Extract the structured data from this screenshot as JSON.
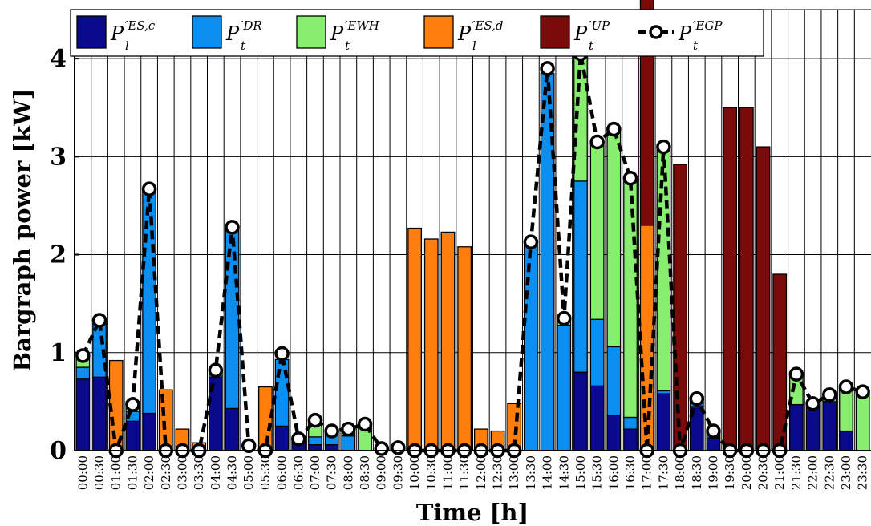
{
  "chart_data": {
    "type": "bar",
    "subtype": "stacked-bar-with-line",
    "ylabel": "Bargraph power [kW]",
    "xlabel": "Time [h]",
    "ylim": [
      0,
      4.5
    ],
    "yticks": [
      "0",
      "1",
      "2",
      "3",
      "4"
    ],
    "grid": true,
    "legend_position": "top",
    "categories": [
      "00:00",
      "00:30",
      "01:00",
      "01:30",
      "02:00",
      "02:30",
      "03:00",
      "03:30",
      "04:00",
      "04:30",
      "05:00",
      "05:30",
      "06:00",
      "06:30",
      "07:00",
      "07:30",
      "08:00",
      "08:30",
      "09:00",
      "09:30",
      "10:00",
      "10:30",
      "11:00",
      "11:30",
      "12:00",
      "12:30",
      "13:00",
      "13:30",
      "14:00",
      "14:30",
      "15:00",
      "15:30",
      "16:00",
      "16:30",
      "17:00",
      "17:30",
      "18:00",
      "18:30",
      "19:00",
      "19:30",
      "20:00",
      "20:30",
      "21:00",
      "21:30",
      "22:00",
      "22:30",
      "23:00",
      "23:30"
    ],
    "series": [
      {
        "key": "es_c",
        "legend_base": "P",
        "legend_sup": "′ES,c",
        "legend_sub": "l",
        "color": "#0a0a8c",
        "values": [
          0.73,
          0.75,
          0,
          0.3,
          0.38,
          0,
          0,
          0,
          0.75,
          0.43,
          0,
          0,
          0.25,
          0.08,
          0.06,
          0.06,
          0,
          0,
          0,
          0,
          0,
          0,
          0,
          0,
          0,
          0,
          0,
          0,
          0,
          0,
          0.8,
          0.66,
          0.36,
          0.22,
          0,
          0.58,
          0,
          0.45,
          0.13,
          0,
          0,
          0,
          0,
          0.47,
          0.45,
          0.5,
          0.2,
          0
        ]
      },
      {
        "key": "dr",
        "legend_base": "P",
        "legend_sup": "′DR",
        "legend_sub": "t",
        "color": "#0a8ef0",
        "values": [
          0.12,
          0.55,
          0,
          0.1,
          2.27,
          0,
          0,
          0,
          0.05,
          1.82,
          0,
          0,
          0.68,
          0.04,
          0.08,
          0.12,
          0.15,
          0,
          0,
          0,
          0,
          0,
          0,
          0,
          0,
          0,
          0,
          2.1,
          3.85,
          1.28,
          1.95,
          0.68,
          0.7,
          0.12,
          0,
          0.03,
          0,
          0.1,
          0.08,
          0,
          0,
          0,
          0,
          0,
          0,
          0,
          0,
          0
        ]
      },
      {
        "key": "ewh",
        "legend_base": "P",
        "legend_sup": "′EWH",
        "legend_sub": "t",
        "color": "#88ee70",
        "values": [
          0.12,
          0,
          0,
          0.1,
          0,
          0,
          0,
          0,
          0,
          0,
          0,
          0,
          0,
          0,
          0.16,
          0,
          0.06,
          0.26,
          0,
          0,
          0,
          0,
          0,
          0,
          0,
          0,
          0,
          0,
          0,
          0.05,
          1.3,
          1.81,
          2.22,
          2.44,
          0,
          2.5,
          0,
          0,
          0,
          0,
          0,
          0,
          0,
          0.3,
          0,
          0.08,
          0.45,
          0.58
        ]
      },
      {
        "key": "es_d",
        "legend_base": "P",
        "legend_sup": "′ES,d",
        "legend_sub": "l",
        "color": "#ff7f0e",
        "values": [
          0,
          0,
          0.92,
          0,
          0,
          0.62,
          0.22,
          0.08,
          0,
          0,
          0,
          0.65,
          0,
          0,
          0,
          0,
          0,
          0,
          0,
          0,
          2.27,
          2.16,
          2.23,
          2.08,
          0.22,
          0.2,
          0.48,
          0,
          0,
          0,
          0,
          0,
          0,
          0,
          2.3,
          0,
          0,
          0,
          0,
          0,
          0,
          0,
          0,
          0,
          0,
          0,
          0,
          0
        ]
      },
      {
        "key": "up",
        "legend_base": "P",
        "legend_sup": "′UP",
        "legend_sub": "t",
        "color": "#7a0b0b",
        "values": [
          0,
          0,
          0,
          0,
          0,
          0,
          0,
          0,
          0,
          0,
          0,
          0,
          0,
          0,
          0,
          0,
          0,
          0,
          0,
          0,
          0,
          0,
          0,
          0,
          0,
          0,
          0,
          0,
          0,
          0,
          0,
          0,
          0,
          0,
          4.15,
          0,
          2.92,
          0,
          0,
          3.5,
          3.5,
          3.1,
          1.8,
          0,
          0,
          0,
          0,
          0
        ]
      },
      {
        "key": "egp",
        "legend_base": "P",
        "legend_sup": "′EGP",
        "legend_sub": "t",
        "type": "line",
        "color": "#000000",
        "values": [
          0.97,
          1.33,
          0,
          0.47,
          2.67,
          0,
          0,
          0,
          0.82,
          2.28,
          0.05,
          0,
          0.99,
          0.12,
          0.31,
          0.2,
          0.22,
          0.27,
          0.02,
          0.03,
          0,
          0,
          0,
          0,
          0,
          0,
          0,
          2.13,
          3.9,
          1.35,
          4.05,
          3.15,
          3.28,
          2.78,
          0,
          3.1,
          0,
          0.53,
          0.2,
          0,
          0,
          0,
          0,
          0.78,
          0.48,
          0.57,
          0.65,
          0.6
        ]
      }
    ]
  }
}
